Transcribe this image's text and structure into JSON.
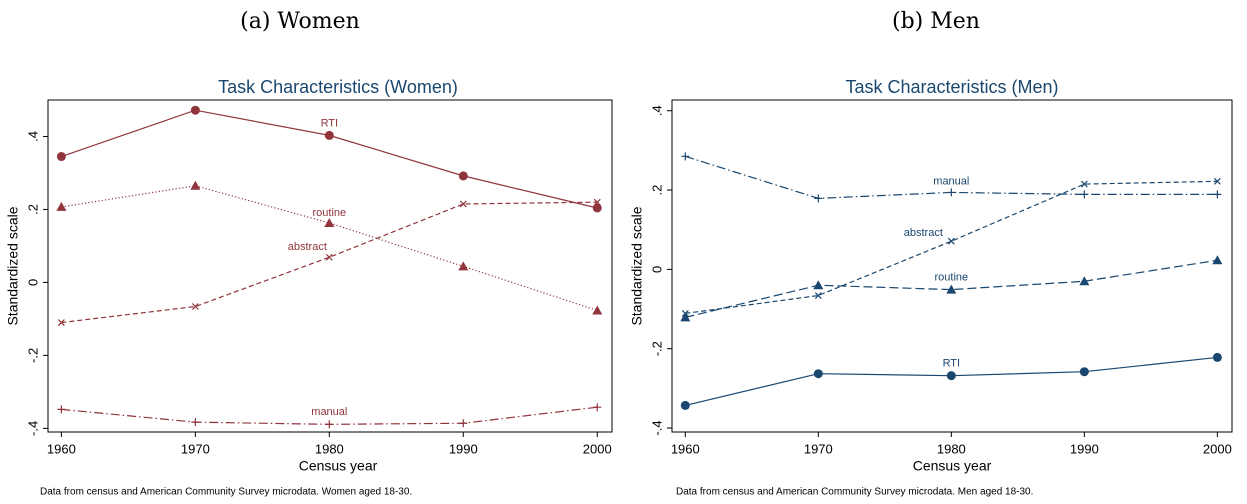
{
  "chart_data": [
    {
      "type": "line",
      "caption": "(a) Women",
      "title": "Task Characteristics (Women)",
      "xlabel": "Census year",
      "ylabel": "Standardized scale",
      "note": "Data from census and American Community Survey microdata. Women aged 18-30.",
      "x": [
        1960,
        1970,
        1980,
        1990,
        2000
      ],
      "xlim": [
        1959,
        2001.1
      ],
      "xticks": [
        1960,
        1970,
        1980,
        1990,
        2000
      ],
      "ylim": [
        -0.41,
        0.5
      ],
      "yticks": [
        {
          "value": -0.4,
          "label": "-.4"
        },
        {
          "value": -0.2,
          "label": "-.2"
        },
        0,
        {
          "value": 0.2,
          "label": ".2"
        },
        {
          "value": 0.4,
          "label": ".4"
        }
      ],
      "series": [
        {
          "name": "RTI",
          "color": "#90353b",
          "marker": "circle",
          "line_style": "solid",
          "values": [
            0.345,
            0.472,
            0.403,
            0.292,
            0.204
          ]
        },
        {
          "name": "routine",
          "color": "#90353b",
          "marker": "triangle",
          "line_style": "dotted",
          "values": [
            0.207,
            0.265,
            0.163,
            0.044,
            -0.077
          ]
        },
        {
          "name": "abstract",
          "color": "#90353b",
          "marker": "x",
          "line_style": "dashed",
          "values": [
            -0.11,
            -0.066,
            0.069,
            0.215,
            0.22
          ]
        },
        {
          "name": "manual",
          "color": "#90353b",
          "marker": "plus",
          "line_style": "dashdot",
          "values": [
            -0.348,
            -0.383,
            -0.389,
            -0.386,
            -0.342
          ]
        }
      ]
    },
    {
      "type": "line",
      "caption": "(b) Men",
      "title": "Task Characteristics (Men)",
      "xlabel": "Census year",
      "ylabel": "Standardized scale",
      "note": "Data from census and American Community Survey microdata. Men aged 18-30.",
      "x": [
        1960,
        1970,
        1980,
        1990,
        2000
      ],
      "xlim": [
        1959,
        2001.1
      ],
      "xticks": [
        1960,
        1970,
        1980,
        1990,
        2000
      ],
      "ylim": [
        -0.41,
        0.427
      ],
      "yticks": [
        {
          "value": -0.4,
          "label": "-.4"
        },
        {
          "value": -0.2,
          "label": "-.2"
        },
        0,
        {
          "value": 0.2,
          "label": ".2"
        },
        {
          "value": 0.4,
          "label": ".4"
        }
      ],
      "series": [
        {
          "name": "RTI",
          "color": "#1a476f",
          "marker": "circle",
          "line_style": "solid",
          "values": [
            -0.343,
            -0.263,
            -0.268,
            -0.258,
            -0.222
          ]
        },
        {
          "name": "routine",
          "color": "#1a476f",
          "marker": "triangle",
          "line_style": "longdash",
          "values": [
            -0.121,
            -0.04,
            -0.051,
            -0.03,
            0.023
          ]
        },
        {
          "name": "abstract",
          "color": "#1a476f",
          "marker": "x",
          "line_style": "dashed",
          "values": [
            -0.111,
            -0.066,
            0.071,
            0.215,
            0.222
          ]
        },
        {
          "name": "manual",
          "color": "#1a476f",
          "marker": "plus",
          "line_style": "dashdot",
          "values": [
            0.285,
            0.179,
            0.194,
            0.189,
            0.189
          ]
        }
      ]
    }
  ]
}
